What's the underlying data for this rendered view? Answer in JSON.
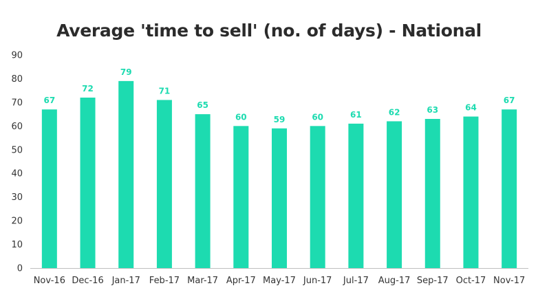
{
  "chart_data": {
    "type": "bar",
    "title": "Average 'time to sell' (no. of days) - National",
    "xlabel": "",
    "ylabel": "",
    "categories": [
      "Nov-16",
      "Dec-16",
      "Jan-17",
      "Feb-17",
      "Mar-17",
      "Apr-17",
      "May-17",
      "Jun-17",
      "Jul-17",
      "Aug-17",
      "Sep-17",
      "Oct-17",
      "Nov-17"
    ],
    "values": [
      67,
      72,
      79,
      71,
      65,
      60,
      59,
      60,
      61,
      62,
      63,
      64,
      67
    ],
    "ylim": [
      0,
      90
    ],
    "yticks": [
      0,
      10,
      20,
      30,
      40,
      50,
      60,
      70,
      80,
      90
    ],
    "grid": false,
    "data_labels": true,
    "colors": {
      "bar": "#1ddbb0",
      "label": "#1ddbb0",
      "axis": "#bfbfbf",
      "title": "#2b2b2b"
    }
  }
}
